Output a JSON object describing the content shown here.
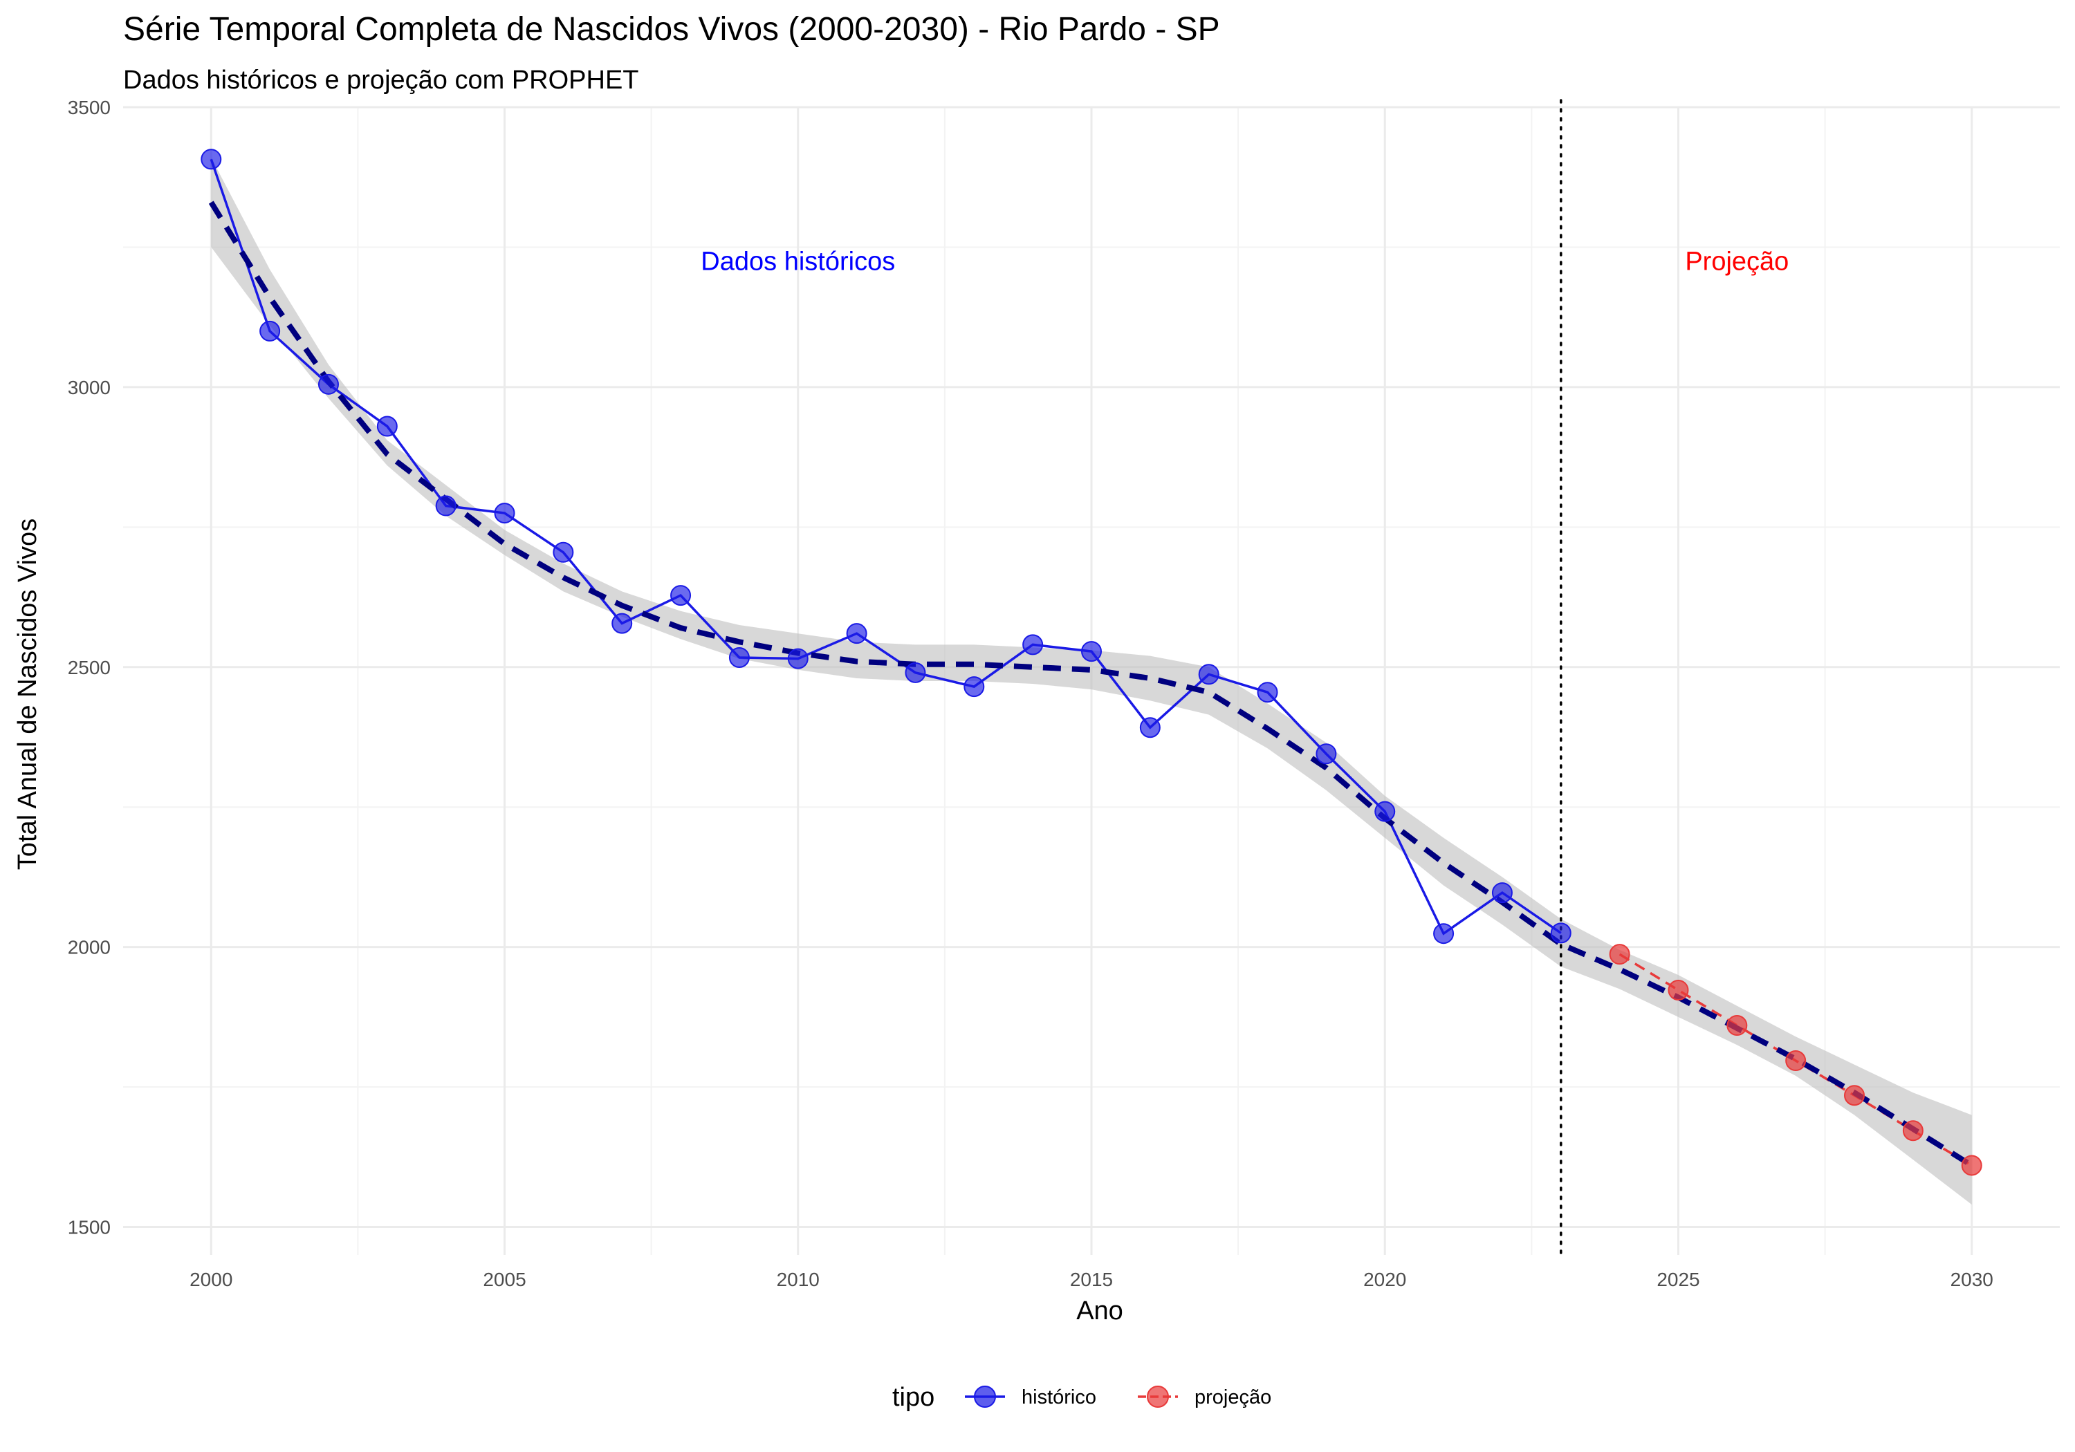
{
  "chart_data": {
    "type": "line",
    "title": "Série Temporal Completa de Nascidos Vivos (2000-2030) -  Rio Pardo - SP",
    "subtitle": "Dados históricos e projeção com PROPHET",
    "xlabel": "Ano",
    "ylabel": "Total Anual de Nascidos Vivos",
    "xlim": [
      1998.5,
      2031.5
    ],
    "ylim": [
      1450,
      3500
    ],
    "x_ticks": [
      2000,
      2005,
      2010,
      2015,
      2020,
      2025,
      2030
    ],
    "x_tick_labels": [
      "2000",
      "2005",
      "2010",
      "2015",
      "2020",
      "2025",
      "2030"
    ],
    "y_ticks": [
      1500,
      2000,
      2500,
      3000,
      3500
    ],
    "y_tick_labels": [
      "1500",
      "2000",
      "2500",
      "3000",
      "3500"
    ],
    "grid": true,
    "legend": {
      "title": "tipo",
      "position": "bottom",
      "entries": [
        "histórico",
        "projeção"
      ]
    },
    "colors": {
      "historico": "#1a1ae6",
      "projecao": "#e83a3a",
      "fit": "#00007f",
      "band": "#bebebe",
      "grid": "#ebebeb",
      "vline": "#000000"
    },
    "series": [
      {
        "name": "histórico",
        "x": [
          2000,
          2001,
          2002,
          2003,
          2004,
          2005,
          2006,
          2007,
          2008,
          2009,
          2010,
          2011,
          2012,
          2013,
          2014,
          2015,
          2016,
          2017,
          2018,
          2019,
          2020,
          2021,
          2022,
          2023
        ],
        "values": [
          3407,
          3100,
          3005,
          2930,
          2788,
          2775,
          2705,
          2578,
          2628,
          2517,
          2515,
          2560,
          2490,
          2465,
          2540,
          2528,
          2392,
          2487,
          2455,
          2345,
          2242,
          2024,
          2097,
          2025
        ]
      },
      {
        "name": "projeção",
        "x": [
          2024,
          2025,
          2026,
          2027,
          2028,
          2029,
          2030
        ],
        "values": [
          1987,
          1923,
          1860,
          1797,
          1735,
          1672,
          1610
        ]
      }
    ],
    "fit": {
      "x": [
        2000,
        2001,
        2002,
        2003,
        2004,
        2005,
        2006,
        2007,
        2008,
        2009,
        2010,
        2011,
        2012,
        2013,
        2014,
        2015,
        2016,
        2017,
        2018,
        2019,
        2020,
        2021,
        2022,
        2023,
        2024,
        2025,
        2026,
        2027,
        2028,
        2029,
        2030
      ],
      "y": [
        3330,
        3160,
        3010,
        2880,
        2800,
        2720,
        2660,
        2610,
        2570,
        2545,
        2525,
        2510,
        2505,
        2505,
        2500,
        2495,
        2480,
        2455,
        2390,
        2320,
        2230,
        2150,
        2080,
        2005,
        1960,
        1910,
        1855,
        1800,
        1740,
        1675,
        1610
      ],
      "lower": [
        3250,
        3110,
        2980,
        2860,
        2770,
        2700,
        2635,
        2590,
        2550,
        2515,
        2495,
        2480,
        2475,
        2475,
        2470,
        2460,
        2440,
        2415,
        2355,
        2280,
        2195,
        2110,
        2040,
        1965,
        1925,
        1875,
        1825,
        1770,
        1700,
        1620,
        1540
      ],
      "upper": [
        3410,
        3210,
        3040,
        2905,
        2825,
        2745,
        2685,
        2635,
        2600,
        2575,
        2560,
        2545,
        2540,
        2540,
        2535,
        2530,
        2520,
        2500,
        2435,
        2365,
        2270,
        2195,
        2125,
        2050,
        1995,
        1950,
        1895,
        1840,
        1790,
        1740,
        1700
      ]
    },
    "vline_x": 2023,
    "annotations": [
      {
        "text": "Dados históricos",
        "x": 2010,
        "y": 3225,
        "color": "#0000ff"
      },
      {
        "text": "Projeção",
        "x": 2026,
        "y": 3225,
        "color": "#ff0000"
      }
    ]
  }
}
